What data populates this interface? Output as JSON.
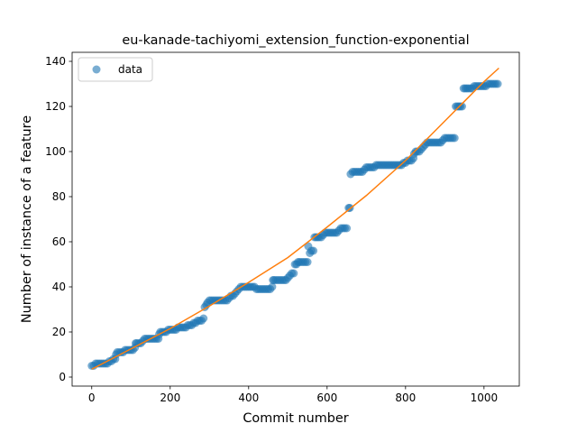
{
  "chart_data": {
    "type": "scatter",
    "title": "eu-kanade-tachiyomi_extension_function-exponential",
    "xlabel": "Commit number",
    "ylabel": "Number of instance of a feature",
    "xlim": [
      -50,
      1090
    ],
    "ylim": [
      -4,
      144
    ],
    "xticks": [
      0,
      200,
      400,
      600,
      800,
      1000
    ],
    "yticks": [
      0,
      20,
      40,
      60,
      80,
      100,
      120,
      140
    ],
    "grid": false,
    "legend": {
      "placement": "top-left",
      "entries": [
        "data"
      ]
    },
    "colors": {
      "data": "#1f77b4",
      "fit": "#ff7f0e"
    },
    "series": [
      {
        "name": "data",
        "type": "scatter",
        "points": [
          [
            0,
            5
          ],
          [
            5,
            5
          ],
          [
            10,
            6
          ],
          [
            15,
            6
          ],
          [
            20,
            6
          ],
          [
            25,
            6
          ],
          [
            30,
            6
          ],
          [
            35,
            6
          ],
          [
            40,
            6
          ],
          [
            45,
            7
          ],
          [
            50,
            7
          ],
          [
            55,
            8
          ],
          [
            60,
            8
          ],
          [
            62,
            10
          ],
          [
            65,
            11
          ],
          [
            70,
            11
          ],
          [
            75,
            11
          ],
          [
            80,
            11
          ],
          [
            85,
            12
          ],
          [
            90,
            12
          ],
          [
            95,
            12
          ],
          [
            100,
            12
          ],
          [
            105,
            12
          ],
          [
            110,
            13
          ],
          [
            112,
            15
          ],
          [
            115,
            15
          ],
          [
            120,
            15
          ],
          [
            125,
            15
          ],
          [
            130,
            16
          ],
          [
            135,
            17
          ],
          [
            140,
            17
          ],
          [
            145,
            17
          ],
          [
            150,
            17
          ],
          [
            155,
            17
          ],
          [
            160,
            17
          ],
          [
            165,
            17
          ],
          [
            170,
            17
          ],
          [
            172,
            19
          ],
          [
            175,
            20
          ],
          [
            180,
            20
          ],
          [
            185,
            20
          ],
          [
            190,
            20
          ],
          [
            195,
            21
          ],
          [
            200,
            21
          ],
          [
            205,
            21
          ],
          [
            210,
            21
          ],
          [
            215,
            21
          ],
          [
            220,
            22
          ],
          [
            225,
            22
          ],
          [
            230,
            22
          ],
          [
            235,
            22
          ],
          [
            240,
            22
          ],
          [
            245,
            23
          ],
          [
            250,
            23
          ],
          [
            255,
            23
          ],
          [
            260,
            24
          ],
          [
            265,
            24
          ],
          [
            270,
            25
          ],
          [
            275,
            25
          ],
          [
            280,
            25
          ],
          [
            285,
            26
          ],
          [
            288,
            31
          ],
          [
            292,
            32
          ],
          [
            295,
            33
          ],
          [
            300,
            34
          ],
          [
            305,
            34
          ],
          [
            310,
            34
          ],
          [
            315,
            34
          ],
          [
            320,
            34
          ],
          [
            325,
            34
          ],
          [
            330,
            34
          ],
          [
            335,
            34
          ],
          [
            340,
            34
          ],
          [
            345,
            34
          ],
          [
            350,
            35
          ],
          [
            355,
            36
          ],
          [
            360,
            36
          ],
          [
            365,
            37
          ],
          [
            370,
            38
          ],
          [
            375,
            39
          ],
          [
            380,
            40
          ],
          [
            385,
            40
          ],
          [
            390,
            40
          ],
          [
            395,
            40
          ],
          [
            400,
            40
          ],
          [
            405,
            40
          ],
          [
            410,
            40
          ],
          [
            415,
            40
          ],
          [
            420,
            39
          ],
          [
            425,
            39
          ],
          [
            430,
            39
          ],
          [
            435,
            39
          ],
          [
            440,
            39
          ],
          [
            445,
            39
          ],
          [
            450,
            39
          ],
          [
            455,
            39
          ],
          [
            460,
            40
          ],
          [
            462,
            43
          ],
          [
            465,
            43
          ],
          [
            470,
            43
          ],
          [
            475,
            43
          ],
          [
            480,
            43
          ],
          [
            485,
            43
          ],
          [
            490,
            43
          ],
          [
            495,
            43
          ],
          [
            500,
            44
          ],
          [
            505,
            45
          ],
          [
            510,
            46
          ],
          [
            515,
            46
          ],
          [
            518,
            50
          ],
          [
            522,
            50
          ],
          [
            526,
            51
          ],
          [
            530,
            51
          ],
          [
            535,
            51
          ],
          [
            540,
            51
          ],
          [
            545,
            51
          ],
          [
            550,
            51
          ],
          [
            552,
            58
          ],
          [
            556,
            55
          ],
          [
            560,
            56
          ],
          [
            565,
            56
          ],
          [
            568,
            62
          ],
          [
            572,
            62
          ],
          [
            576,
            62
          ],
          [
            580,
            62
          ],
          [
            585,
            62
          ],
          [
            590,
            63
          ],
          [
            595,
            64
          ],
          [
            600,
            64
          ],
          [
            605,
            64
          ],
          [
            610,
            64
          ],
          [
            615,
            64
          ],
          [
            620,
            64
          ],
          [
            625,
            64
          ],
          [
            630,
            65
          ],
          [
            635,
            66
          ],
          [
            640,
            66
          ],
          [
            645,
            66
          ],
          [
            650,
            66
          ],
          [
            655,
            75
          ],
          [
            658,
            75
          ],
          [
            660,
            90
          ],
          [
            665,
            91
          ],
          [
            670,
            91
          ],
          [
            675,
            91
          ],
          [
            680,
            91
          ],
          [
            685,
            91
          ],
          [
            690,
            91
          ],
          [
            695,
            92
          ],
          [
            700,
            93
          ],
          [
            705,
            93
          ],
          [
            710,
            93
          ],
          [
            715,
            93
          ],
          [
            720,
            93
          ],
          [
            725,
            94
          ],
          [
            730,
            94
          ],
          [
            735,
            94
          ],
          [
            740,
            94
          ],
          [
            745,
            94
          ],
          [
            750,
            94
          ],
          [
            755,
            94
          ],
          [
            760,
            94
          ],
          [
            765,
            94
          ],
          [
            770,
            94
          ],
          [
            775,
            94
          ],
          [
            780,
            94
          ],
          [
            785,
            94
          ],
          [
            790,
            94
          ],
          [
            795,
            95
          ],
          [
            800,
            95
          ],
          [
            805,
            96
          ],
          [
            810,
            96
          ],
          [
            815,
            96
          ],
          [
            820,
            97
          ],
          [
            822,
            99
          ],
          [
            826,
            100
          ],
          [
            830,
            100
          ],
          [
            835,
            100
          ],
          [
            840,
            101
          ],
          [
            845,
            102
          ],
          [
            850,
            103
          ],
          [
            855,
            104
          ],
          [
            860,
            104
          ],
          [
            865,
            104
          ],
          [
            870,
            104
          ],
          [
            875,
            104
          ],
          [
            880,
            104
          ],
          [
            885,
            104
          ],
          [
            890,
            104
          ],
          [
            895,
            105
          ],
          [
            900,
            106
          ],
          [
            905,
            106
          ],
          [
            910,
            106
          ],
          [
            915,
            106
          ],
          [
            920,
            106
          ],
          [
            925,
            106
          ],
          [
            928,
            120
          ],
          [
            932,
            120
          ],
          [
            936,
            120
          ],
          [
            940,
            120
          ],
          [
            944,
            120
          ],
          [
            948,
            128
          ],
          [
            952,
            128
          ],
          [
            956,
            128
          ],
          [
            960,
            128
          ],
          [
            965,
            128
          ],
          [
            970,
            128
          ],
          [
            975,
            129
          ],
          [
            980,
            129
          ],
          [
            985,
            129
          ],
          [
            990,
            129
          ],
          [
            995,
            129
          ],
          [
            1000,
            129
          ],
          [
            1005,
            129
          ],
          [
            1010,
            130
          ],
          [
            1015,
            130
          ],
          [
            1020,
            130
          ],
          [
            1025,
            130
          ],
          [
            1030,
            130
          ],
          [
            1035,
            130
          ]
        ]
      },
      {
        "name": "fit",
        "type": "line",
        "points": [
          [
            0,
            3.5
          ],
          [
            100,
            12.5
          ],
          [
            200,
            21.5
          ],
          [
            300,
            31.5
          ],
          [
            400,
            42
          ],
          [
            500,
            53
          ],
          [
            600,
            66.5
          ],
          [
            700,
            80.5
          ],
          [
            800,
            96
          ],
          [
            900,
            113.5
          ],
          [
            1000,
            131
          ],
          [
            1038,
            137
          ]
        ]
      }
    ]
  }
}
